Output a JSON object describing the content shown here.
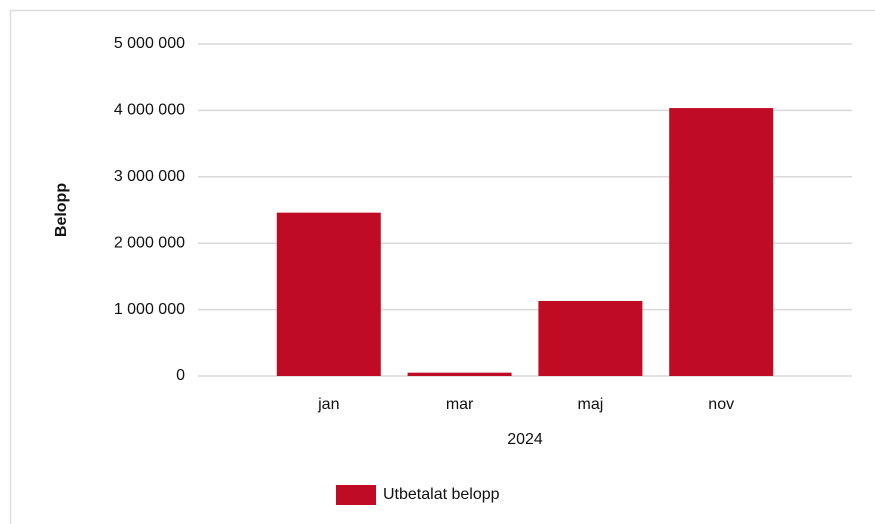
{
  "chart_data": {
    "type": "bar",
    "categories": [
      "jan",
      "mar",
      "maj",
      "nov"
    ],
    "series": [
      {
        "name": "Utbetalat belopp",
        "color": "#c00b24",
        "values": [
          2460000,
          50000,
          1130000,
          4035000
        ]
      }
    ],
    "xlabel": "2024",
    "ylabel": "Belopp",
    "ylim": [
      0,
      5000000
    ],
    "yticks": [
      0,
      {
        "value": 1000000,
        "label": "1 000 000"
      },
      {
        "value": 2000000,
        "label": "2 000 000"
      },
      {
        "value": 3000000,
        "label": "3 000 000"
      },
      {
        "value": 4000000,
        "label": "4 000 000"
      },
      {
        "value": 5000000,
        "label": "5 000 000"
      }
    ],
    "grid": true,
    "legend": "bottom"
  }
}
